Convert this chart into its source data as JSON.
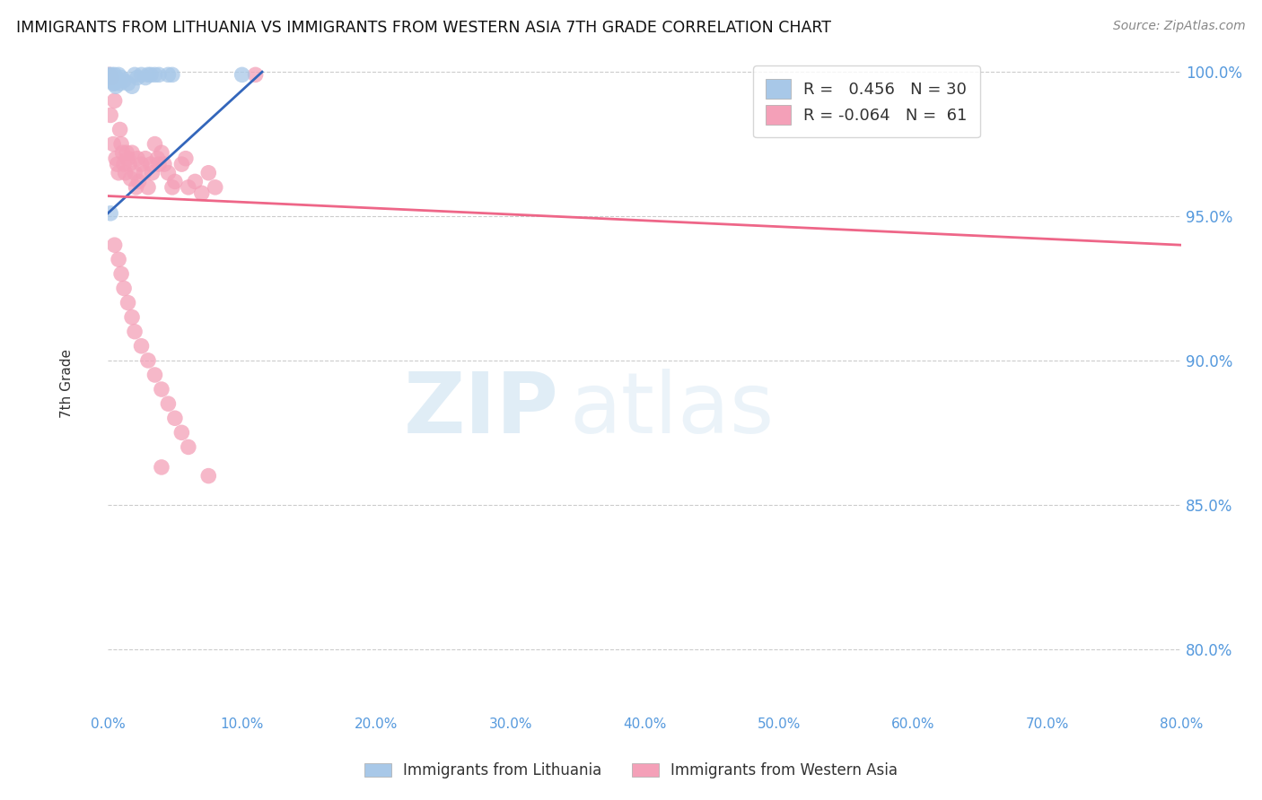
{
  "title": "IMMIGRANTS FROM LITHUANIA VS IMMIGRANTS FROM WESTERN ASIA 7TH GRADE CORRELATION CHART",
  "source": "Source: ZipAtlas.com",
  "ylabel": "7th Grade",
  "xlim": [
    0.0,
    0.8
  ],
  "ylim": [
    0.779,
    1.005
  ],
  "yticks_right": [
    0.8,
    0.85,
    0.9,
    0.95,
    1.0
  ],
  "xticks": [
    0.0,
    0.1,
    0.2,
    0.3,
    0.4,
    0.5,
    0.6,
    0.7,
    0.8
  ],
  "legend_blue_r": "0.456",
  "legend_blue_n": "30",
  "legend_pink_r": "-0.064",
  "legend_pink_n": "61",
  "blue_color": "#A8C8E8",
  "pink_color": "#F4A0B8",
  "blue_line_color": "#3366BB",
  "pink_line_color": "#EE6688",
  "blue_scatter": [
    [
      0.001,
      0.999
    ],
    [
      0.002,
      0.998
    ],
    [
      0.002,
      0.997
    ],
    [
      0.003,
      0.999
    ],
    [
      0.003,
      0.997
    ],
    [
      0.004,
      0.998
    ],
    [
      0.004,
      0.996
    ],
    [
      0.005,
      0.999
    ],
    [
      0.005,
      0.996
    ],
    [
      0.006,
      0.998
    ],
    [
      0.006,
      0.995
    ],
    [
      0.007,
      0.997
    ],
    [
      0.008,
      0.999
    ],
    [
      0.009,
      0.996
    ],
    [
      0.01,
      0.998
    ],
    [
      0.012,
      0.997
    ],
    [
      0.015,
      0.996
    ],
    [
      0.018,
      0.995
    ],
    [
      0.02,
      0.999
    ],
    [
      0.022,
      0.998
    ],
    [
      0.025,
      0.999
    ],
    [
      0.028,
      0.998
    ],
    [
      0.03,
      0.999
    ],
    [
      0.032,
      0.999
    ],
    [
      0.035,
      0.999
    ],
    [
      0.038,
      0.999
    ],
    [
      0.045,
      0.999
    ],
    [
      0.048,
      0.999
    ],
    [
      0.1,
      0.999
    ],
    [
      0.002,
      0.951
    ]
  ],
  "pink_scatter": [
    [
      0.001,
      0.999
    ],
    [
      0.002,
      0.985
    ],
    [
      0.003,
      0.998
    ],
    [
      0.004,
      0.975
    ],
    [
      0.005,
      0.99
    ],
    [
      0.006,
      0.97
    ],
    [
      0.007,
      0.968
    ],
    [
      0.008,
      0.965
    ],
    [
      0.009,
      0.98
    ],
    [
      0.01,
      0.975
    ],
    [
      0.011,
      0.972
    ],
    [
      0.012,
      0.968
    ],
    [
      0.013,
      0.965
    ],
    [
      0.014,
      0.972
    ],
    [
      0.015,
      0.97
    ],
    [
      0.016,
      0.968
    ],
    [
      0.017,
      0.963
    ],
    [
      0.018,
      0.972
    ],
    [
      0.02,
      0.965
    ],
    [
      0.021,
      0.96
    ],
    [
      0.022,
      0.97
    ],
    [
      0.023,
      0.962
    ],
    [
      0.025,
      0.968
    ],
    [
      0.027,
      0.965
    ],
    [
      0.028,
      0.97
    ],
    [
      0.03,
      0.96
    ],
    [
      0.032,
      0.968
    ],
    [
      0.033,
      0.965
    ],
    [
      0.035,
      0.975
    ],
    [
      0.037,
      0.97
    ],
    [
      0.038,
      0.968
    ],
    [
      0.04,
      0.972
    ],
    [
      0.042,
      0.968
    ],
    [
      0.045,
      0.965
    ],
    [
      0.048,
      0.96
    ],
    [
      0.05,
      0.962
    ],
    [
      0.055,
      0.968
    ],
    [
      0.058,
      0.97
    ],
    [
      0.06,
      0.96
    ],
    [
      0.065,
      0.962
    ],
    [
      0.07,
      0.958
    ],
    [
      0.075,
      0.965
    ],
    [
      0.08,
      0.96
    ],
    [
      0.005,
      0.94
    ],
    [
      0.008,
      0.935
    ],
    [
      0.01,
      0.93
    ],
    [
      0.012,
      0.925
    ],
    [
      0.015,
      0.92
    ],
    [
      0.018,
      0.915
    ],
    [
      0.02,
      0.91
    ],
    [
      0.025,
      0.905
    ],
    [
      0.03,
      0.9
    ],
    [
      0.035,
      0.895
    ],
    [
      0.04,
      0.89
    ],
    [
      0.045,
      0.885
    ],
    [
      0.05,
      0.88
    ],
    [
      0.055,
      0.875
    ],
    [
      0.06,
      0.87
    ],
    [
      0.04,
      0.863
    ],
    [
      0.075,
      0.86
    ],
    [
      0.11,
      0.999
    ]
  ],
  "watermark_zip": "ZIP",
  "watermark_atlas": "atlas",
  "legend_label_blue": "Immigrants from Lithuania",
  "legend_label_pink": "Immigrants from Western Asia",
  "blue_trend_x": [
    0.0,
    0.115
  ],
  "blue_trend_y": [
    0.951,
    1.0
  ],
  "pink_trend_x": [
    0.0,
    0.8
  ],
  "pink_trend_y": [
    0.957,
    0.94
  ]
}
